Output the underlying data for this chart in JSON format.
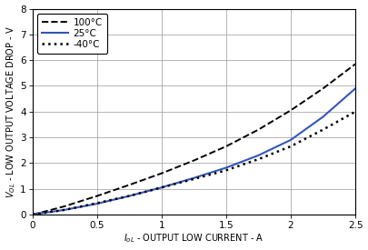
{
  "xlim": [
    0,
    2.5
  ],
  "ylim": [
    0,
    8
  ],
  "xticks": [
    0,
    0.5,
    1.0,
    1.5,
    2.0,
    2.5
  ],
  "yticks": [
    0,
    1,
    2,
    3,
    4,
    5,
    6,
    7,
    8
  ],
  "curves": [
    {
      "label": "100°C",
      "x": [
        0,
        0.1,
        0.25,
        0.5,
        0.75,
        1.0,
        1.25,
        1.5,
        1.75,
        2.0,
        2.25,
        2.5
      ],
      "y": [
        0,
        0.12,
        0.32,
        0.72,
        1.15,
        1.6,
        2.1,
        2.65,
        3.3,
        4.05,
        4.9,
        5.85
      ],
      "color": "#000000",
      "linestyle": "--",
      "linewidth": 1.4,
      "dashes": [
        5,
        3
      ]
    },
    {
      "label": "25°C",
      "x": [
        0,
        0.1,
        0.25,
        0.5,
        0.75,
        1.0,
        1.25,
        1.5,
        1.75,
        2.0,
        2.25,
        2.5
      ],
      "y": [
        0,
        0.07,
        0.18,
        0.42,
        0.72,
        1.05,
        1.42,
        1.82,
        2.3,
        2.9,
        3.8,
        4.9
      ],
      "color": "#3355bb",
      "linestyle": "-",
      "linewidth": 1.5,
      "dashes": []
    },
    {
      "label": "-40°C",
      "x": [
        0,
        0.1,
        0.25,
        0.5,
        0.75,
        1.0,
        1.25,
        1.5,
        1.75,
        2.0,
        2.25,
        2.5
      ],
      "y": [
        0,
        0.07,
        0.18,
        0.44,
        0.72,
        1.05,
        1.38,
        1.72,
        2.15,
        2.65,
        3.3,
        4.0
      ],
      "color": "#000000",
      "linestyle": ":",
      "linewidth": 1.8,
      "dashes": []
    }
  ],
  "legend_loc": "upper left",
  "bg_color": "#ffffff",
  "grid_color": "#999999",
  "font_size_tick": 7.5,
  "font_size_label": 7.0,
  "font_size_legend": 7.5
}
